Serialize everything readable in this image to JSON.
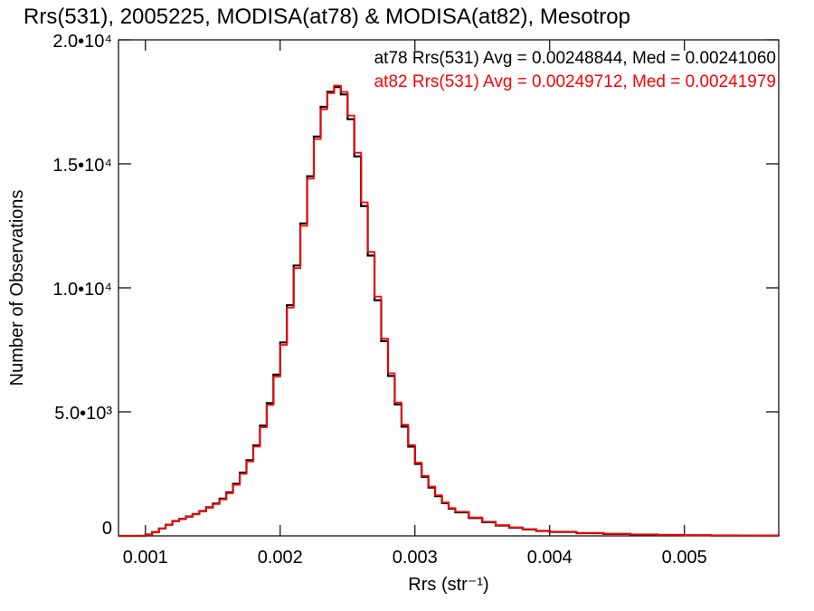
{
  "chart_data": {
    "type": "line",
    "title": "Rrs(531), 2005225, MODISA(at78) & MODISA(at82), Mesotrop",
    "xlabel": "Rrs (str⁻¹)",
    "ylabel": "Number of Observations",
    "xlim": [
      0.0008,
      0.0057
    ],
    "ylim": [
      0,
      20000
    ],
    "x_ticks": [
      {
        "value": 0.001,
        "label": "0.001"
      },
      {
        "value": 0.002,
        "label": "0.002"
      },
      {
        "value": 0.003,
        "label": "0.003"
      },
      {
        "value": 0.004,
        "label": "0.004"
      },
      {
        "value": 0.005,
        "label": "0.005"
      }
    ],
    "y_ticks": [
      {
        "value": 0,
        "label": "0"
      },
      {
        "value": 5000,
        "label": "5.0•10³"
      },
      {
        "value": 10000,
        "label": "1.0•10⁴"
      },
      {
        "value": 15000,
        "label": "1.5•10⁴"
      },
      {
        "value": 20000,
        "label": "2.0•10⁴"
      }
    ],
    "grid": false,
    "legend_position": "top-right",
    "series": [
      {
        "name": "at78 Rrs(531) Avg = 0.00248844, Med = 0.00241060",
        "color": "#000000",
        "x": [
          0.0008,
          0.0009,
          0.001,
          0.00105,
          0.0011,
          0.00115,
          0.0012,
          0.00125,
          0.0013,
          0.00135,
          0.0014,
          0.00145,
          0.0015,
          0.00155,
          0.0016,
          0.00165,
          0.0017,
          0.00175,
          0.0018,
          0.00185,
          0.0019,
          0.00195,
          0.002,
          0.00205,
          0.0021,
          0.00215,
          0.0022,
          0.00225,
          0.0023,
          0.00235,
          0.0024,
          0.00245,
          0.0025,
          0.00255,
          0.0026,
          0.00265,
          0.0027,
          0.00275,
          0.0028,
          0.00285,
          0.0029,
          0.00295,
          0.003,
          0.00305,
          0.0031,
          0.00315,
          0.0032,
          0.00325,
          0.0033,
          0.0034,
          0.0035,
          0.0036,
          0.0037,
          0.0038,
          0.0039,
          0.004,
          0.0042,
          0.0044,
          0.0046,
          0.0048,
          0.005,
          0.0052,
          0.0054,
          0.0057
        ],
        "y": [
          0,
          0,
          50,
          150,
          300,
          450,
          600,
          680,
          780,
          880,
          1000,
          1150,
          1300,
          1500,
          1750,
          2100,
          2550,
          3050,
          3650,
          4450,
          5350,
          6500,
          7800,
          9300,
          10900,
          12600,
          14500,
          16100,
          17300,
          17900,
          18100,
          17800,
          16800,
          15300,
          13300,
          11300,
          9500,
          7850,
          6450,
          5300,
          4400,
          3600,
          2900,
          2380,
          1950,
          1600,
          1320,
          1100,
          950,
          720,
          550,
          420,
          330,
          260,
          200,
          160,
          110,
          75,
          50,
          35,
          25,
          15,
          10,
          5
        ]
      },
      {
        "name": "at82 Rrs(531) Avg = 0.00249712, Med = 0.00241979",
        "color": "#ff0000",
        "x": [
          0.0008,
          0.0009,
          0.001,
          0.00105,
          0.0011,
          0.00115,
          0.0012,
          0.00125,
          0.0013,
          0.00135,
          0.0014,
          0.00145,
          0.0015,
          0.00155,
          0.0016,
          0.00165,
          0.0017,
          0.00175,
          0.0018,
          0.00185,
          0.0019,
          0.00195,
          0.002,
          0.00205,
          0.0021,
          0.00215,
          0.0022,
          0.00225,
          0.0023,
          0.00235,
          0.0024,
          0.00245,
          0.0025,
          0.00255,
          0.0026,
          0.00265,
          0.0027,
          0.00275,
          0.0028,
          0.00285,
          0.0029,
          0.00295,
          0.003,
          0.00305,
          0.0031,
          0.00315,
          0.0032,
          0.00325,
          0.0033,
          0.0034,
          0.0035,
          0.0036,
          0.0037,
          0.0038,
          0.0039,
          0.004,
          0.0042,
          0.0044,
          0.0046,
          0.0048,
          0.005,
          0.0052,
          0.0054,
          0.0057
        ],
        "y": [
          0,
          0,
          40,
          140,
          290,
          440,
          590,
          670,
          770,
          870,
          990,
          1130,
          1280,
          1470,
          1720,
          2060,
          2500,
          3000,
          3600,
          4380,
          5280,
          6420,
          7700,
          9200,
          10800,
          12500,
          14400,
          16000,
          17200,
          17850,
          18150,
          17900,
          16950,
          15450,
          13450,
          11450,
          9650,
          7950,
          6550,
          5380,
          4480,
          3660,
          2950,
          2420,
          1990,
          1640,
          1350,
          1120,
          970,
          740,
          570,
          435,
          340,
          270,
          205,
          165,
          115,
          80,
          52,
          36,
          26,
          16,
          10,
          5
        ]
      }
    ]
  }
}
